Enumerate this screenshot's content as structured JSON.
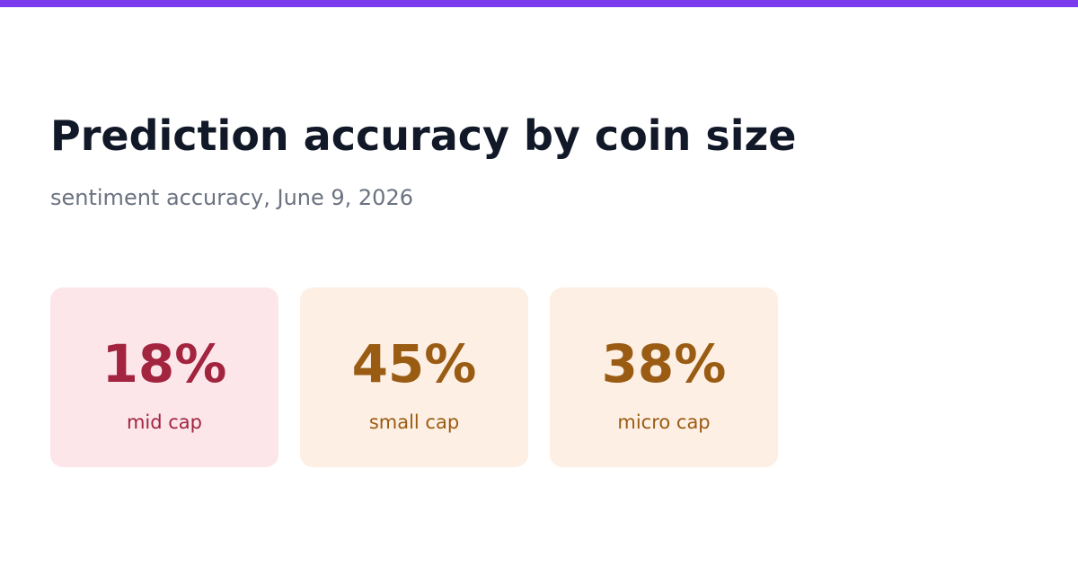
{
  "header": {
    "title": "Prediction accuracy by coin size",
    "subtitle": "sentiment accuracy, June 9, 2026"
  },
  "cards": [
    {
      "value": "18%",
      "label": "mid cap"
    },
    {
      "value": "45%",
      "label": "small cap"
    },
    {
      "value": "38%",
      "label": "micro cap"
    }
  ]
}
